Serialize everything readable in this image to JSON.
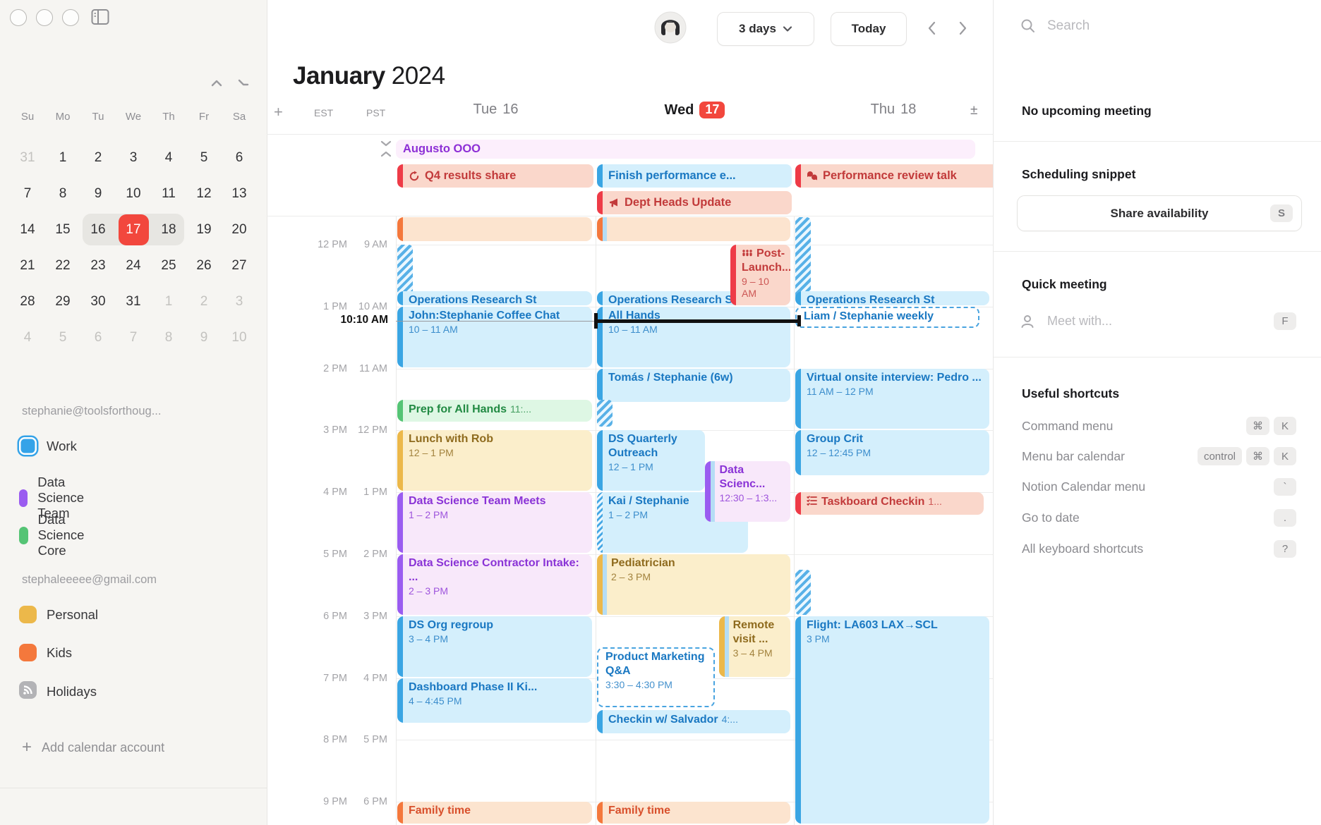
{
  "window": {
    "title": "Notion Calendar"
  },
  "sidebar": {
    "mini_calendar": {
      "weekdays": [
        "Su",
        "Mo",
        "Tu",
        "We",
        "Th",
        "Fr",
        "Sa"
      ],
      "weeks": [
        [
          {
            "d": "31",
            "muted": true
          },
          {
            "d": "1"
          },
          {
            "d": "2"
          },
          {
            "d": "3"
          },
          {
            "d": "4"
          },
          {
            "d": "5"
          },
          {
            "d": "6"
          }
        ],
        [
          {
            "d": "7"
          },
          {
            "d": "8"
          },
          {
            "d": "9"
          },
          {
            "d": "10"
          },
          {
            "d": "11"
          },
          {
            "d": "12"
          },
          {
            "d": "13"
          }
        ],
        [
          {
            "d": "14"
          },
          {
            "d": "15"
          },
          {
            "d": "16",
            "range": true
          },
          {
            "d": "17",
            "today": true,
            "range": true
          },
          {
            "d": "18",
            "range": true
          },
          {
            "d": "19"
          },
          {
            "d": "20"
          }
        ],
        [
          {
            "d": "21"
          },
          {
            "d": "22"
          },
          {
            "d": "23"
          },
          {
            "d": "24"
          },
          {
            "d": "25"
          },
          {
            "d": "26"
          },
          {
            "d": "27"
          }
        ],
        [
          {
            "d": "28"
          },
          {
            "d": "29"
          },
          {
            "d": "30"
          },
          {
            "d": "31"
          },
          {
            "d": "1",
            "muted": true
          },
          {
            "d": "2",
            "muted": true
          },
          {
            "d": "3",
            "muted": true
          }
        ],
        [
          {
            "d": "4",
            "muted": true
          },
          {
            "d": "5",
            "muted": true
          },
          {
            "d": "6",
            "muted": true
          },
          {
            "d": "7",
            "muted": true
          },
          {
            "d": "8",
            "muted": true
          },
          {
            "d": "9",
            "muted": true
          },
          {
            "d": "10",
            "muted": true
          }
        ]
      ]
    },
    "accounts": [
      {
        "email": "stephanie@toolsforthoug...",
        "calendars": [
          {
            "name": "Work",
            "color": "#35a3e8",
            "ring": true,
            "icon": "checkbox"
          },
          {
            "name": "Data Science Team",
            "color": "#9a5cf0",
            "icon": "checkbox"
          },
          {
            "name": "Data Science Core",
            "color": "#55c475",
            "icon": "checkbox"
          }
        ]
      },
      {
        "email": "stephaleeeee@gmail.com",
        "calendars": [
          {
            "name": "Personal",
            "color": "#ecb84a",
            "icon": "checkbox"
          },
          {
            "name": "Kids",
            "color": "#f4783c",
            "icon": "checkbox"
          },
          {
            "name": "Holidays",
            "color": "#b3b3b6",
            "icon": "rss-icon"
          }
        ]
      }
    ],
    "add_account_label": "Add calendar account"
  },
  "header": {
    "view_selector": "3 days",
    "today_label": "Today",
    "month": "January",
    "year": "2024"
  },
  "calendar": {
    "timezones": [
      "EST",
      "PST"
    ],
    "days": [
      {
        "weekday": "Tue",
        "date": "16",
        "today": false
      },
      {
        "weekday": "Wed",
        "date": "17",
        "today": true
      },
      {
        "weekday": "Thu",
        "date": "18",
        "today": false
      }
    ],
    "hour_labels_est": [
      "12 PM",
      "1 PM",
      "2 PM",
      "3 PM",
      "4 PM",
      "5 PM",
      "6 PM",
      "7 PM",
      "8 PM",
      "9 PM"
    ],
    "hour_labels_pst": [
      "9 AM",
      "10 AM",
      "11 AM",
      "12 PM",
      "1 PM",
      "2 PM",
      "3 PM",
      "4 PM",
      "5 PM",
      "6 PM"
    ],
    "now_label": "10:10 AM",
    "allday_span": {
      "title": "Augusto OOO",
      "text_color": "#8d2fd6",
      "bg": "#fceffc"
    },
    "allday_events": [
      {
        "day": 0,
        "row": 0,
        "title": "Q4 results share",
        "color": "red",
        "icon": "repeat-icon"
      },
      {
        "day": 1,
        "row": 0,
        "title": "Finish performance e...",
        "color": "blue"
      },
      {
        "day": 2,
        "row": 0,
        "title": "Performance review talk",
        "color": "red",
        "icon": "chat-icon"
      },
      {
        "day": 1,
        "row": 1,
        "title": "Dept Heads Update",
        "color": "red",
        "icon": "megaphone-icon"
      }
    ],
    "events": [
      {
        "day": 0,
        "start": 513,
        "end": 538,
        "color": "orange",
        "variant": "plain"
      },
      {
        "day": 0,
        "start": 540,
        "end": 598,
        "variant": "hatch"
      },
      {
        "day": 0,
        "start": 585,
        "end": 600,
        "title": "Operations Research St",
        "color": "blue",
        "compact": true
      },
      {
        "day": 0,
        "start": 600,
        "end": 660,
        "title": "John:Stephanie Coffee Chat",
        "time": "10 – 11 AM",
        "color": "blue"
      },
      {
        "day": 0,
        "start": 690,
        "end": 713,
        "title": "Prep for All Hands",
        "inline_time": "11:...",
        "color": "green",
        "compact": true
      },
      {
        "day": 0,
        "start": 720,
        "end": 780,
        "title": "Lunch with Rob",
        "time": "12 – 1 PM",
        "color": "yellow"
      },
      {
        "day": 0,
        "start": 780,
        "end": 840,
        "title": "Data Science Team Meets",
        "time": "1 – 2 PM",
        "color": "purple"
      },
      {
        "day": 0,
        "start": 840,
        "end": 900,
        "title": "Data Science Contractor Intake: ...",
        "time": "2 – 3 PM",
        "color": "purple"
      },
      {
        "day": 0,
        "start": 900,
        "end": 960,
        "title": "DS Org regroup",
        "time": "3 – 4 PM",
        "color": "blue"
      },
      {
        "day": 0,
        "start": 960,
        "end": 1005,
        "title": "Dashboard Phase II Ki...",
        "time": "4 – 4:45 PM",
        "color": "blue"
      },
      {
        "day": 0,
        "start": 1080,
        "end": 1110,
        "title": "Family time",
        "color": "famorange"
      },
      {
        "day": 1,
        "start": 513,
        "end": 538,
        "color": "orange",
        "variant": "plain",
        "strip2": "#b5ddf5"
      },
      {
        "day": 1,
        "start": 585,
        "end": 600,
        "title": "Operations Research St",
        "color": "blue",
        "compact": true
      },
      {
        "day": 1,
        "start": 540,
        "end": 600,
        "title": "Post-Launch...",
        "time": "9 – 10 AM",
        "color": "red",
        "icon": "audience-icon",
        "x": 0.69,
        "w": 0.31
      },
      {
        "day": 1,
        "start": 600,
        "end": 660,
        "title": "All Hands",
        "time": "10 – 11 AM",
        "color": "blue"
      },
      {
        "day": 1,
        "start": 660,
        "end": 694,
        "title": "Tomás / Stephanie (6w)",
        "color": "blue",
        "compact": true
      },
      {
        "day": 1,
        "start": 690,
        "end": 718,
        "variant": "hatch"
      },
      {
        "day": 1,
        "start": 720,
        "end": 780,
        "title": "DS Quarterly Outreach",
        "time": "12 – 1 PM",
        "color": "blue",
        "w": 0.56
      },
      {
        "day": 1,
        "start": 780,
        "end": 840,
        "title": "Kai / Stephanie",
        "time": "1 – 2 PM",
        "color": "blue",
        "bar_hatch": true,
        "w": 0.78
      },
      {
        "day": 1,
        "start": 750,
        "end": 810,
        "title": "Data Scienc...",
        "time": "12:30 – 1:3...",
        "color": "purple",
        "strip2": "#b5ddf5",
        "x": 0.56,
        "w": 0.44
      },
      {
        "day": 1,
        "start": 840,
        "end": 900,
        "title": "Pediatrician",
        "time": "2 – 3 PM",
        "color": "yellow",
        "strip2": "#b5ddf5"
      },
      {
        "day": 1,
        "start": 930,
        "end": 990,
        "title": "Product Marketing Q&A",
        "time": "3:30 – 4:30 PM",
        "variant": "dashed",
        "w": 0.61
      },
      {
        "day": 1,
        "start": 900,
        "end": 960,
        "title": "Remote visit ...",
        "time": "3 – 4 PM",
        "color": "yellow",
        "strip2": "#b5ddf5",
        "x": 0.63,
        "w": 0.37
      },
      {
        "day": 1,
        "start": 991,
        "end": 1015,
        "title": "Checkin w/ Salvador",
        "inline_time": "4:...",
        "color": "blue",
        "compact": true
      },
      {
        "day": 1,
        "start": 1080,
        "end": 1110,
        "title": "Family time",
        "color": "famorange"
      },
      {
        "day": 2,
        "start": 513,
        "end": 598,
        "variant": "hatch"
      },
      {
        "day": 2,
        "start": 585,
        "end": 600,
        "title": "Operations Research St",
        "color": "blue",
        "compact": true
      },
      {
        "day": 2,
        "start": 600,
        "end": 622,
        "title": "Liam / Stephanie weekly",
        "variant": "dashed",
        "compact": true,
        "w": 0.95
      },
      {
        "day": 2,
        "start": 660,
        "end": 720,
        "title": "Virtual onsite interview: Pedro ...",
        "time": "11 AM – 12 PM",
        "color": "blue"
      },
      {
        "day": 2,
        "start": 720,
        "end": 765,
        "title": "Group Crit",
        "time": "12 – 12:45 PM",
        "color": "blue"
      },
      {
        "day": 2,
        "start": 780,
        "end": 803,
        "title": "Taskboard Checkin",
        "inline_time": "1...",
        "color": "red",
        "icon": "checklist-icon",
        "compact": true,
        "w": 0.97
      },
      {
        "day": 2,
        "start": 855,
        "end": 900,
        "variant": "hatch"
      },
      {
        "day": 2,
        "start": 900,
        "end": 1110,
        "title": "Flight: LA603 LAX→SCL",
        "time": "3 PM",
        "color": "blue"
      }
    ],
    "palette": {
      "blue": {
        "bar": "#3aa5e3",
        "bg": "#d4effc",
        "text": "#1a78c2"
      },
      "purple": {
        "bar": "#9a5cf0",
        "bg": "#f8e8fa",
        "text": "#8a33d6"
      },
      "green": {
        "bar": "#55c475",
        "bg": "#def7e4",
        "text": "#218a43"
      },
      "yellow": {
        "bar": "#ecb84a",
        "bg": "#fbeecb",
        "text": "#8f6b1e"
      },
      "orange": {
        "bar": "#f4783c",
        "bg": "#fce4cf",
        "text": "#d8502c"
      },
      "famorange": {
        "bar": "#f4783c",
        "bg": "#fce4cf",
        "text": "#d8502c"
      },
      "red": {
        "bar": "#ee3b47",
        "bg": "#fad7cb",
        "text": "#c23a3a"
      }
    }
  },
  "rightbar": {
    "search_placeholder": "Search",
    "no_upcoming": "No upcoming meeting",
    "scheduling_title": "Scheduling snippet",
    "share_button": "Share availability",
    "share_key": "S",
    "quick_title": "Quick meeting",
    "meet_placeholder": "Meet with...",
    "meet_key": "F",
    "shortcuts_title": "Useful shortcuts",
    "shortcuts": [
      {
        "label": "Command menu",
        "keys": [
          "⌘",
          "K"
        ]
      },
      {
        "label": "Menu bar calendar",
        "keys": [
          "control",
          "⌘",
          "K"
        ]
      },
      {
        "label": "Notion Calendar menu",
        "keys": [
          "`"
        ]
      },
      {
        "label": "Go to date",
        "keys": [
          "."
        ]
      },
      {
        "label": "All keyboard shortcuts",
        "keys": [
          "?"
        ]
      }
    ]
  }
}
